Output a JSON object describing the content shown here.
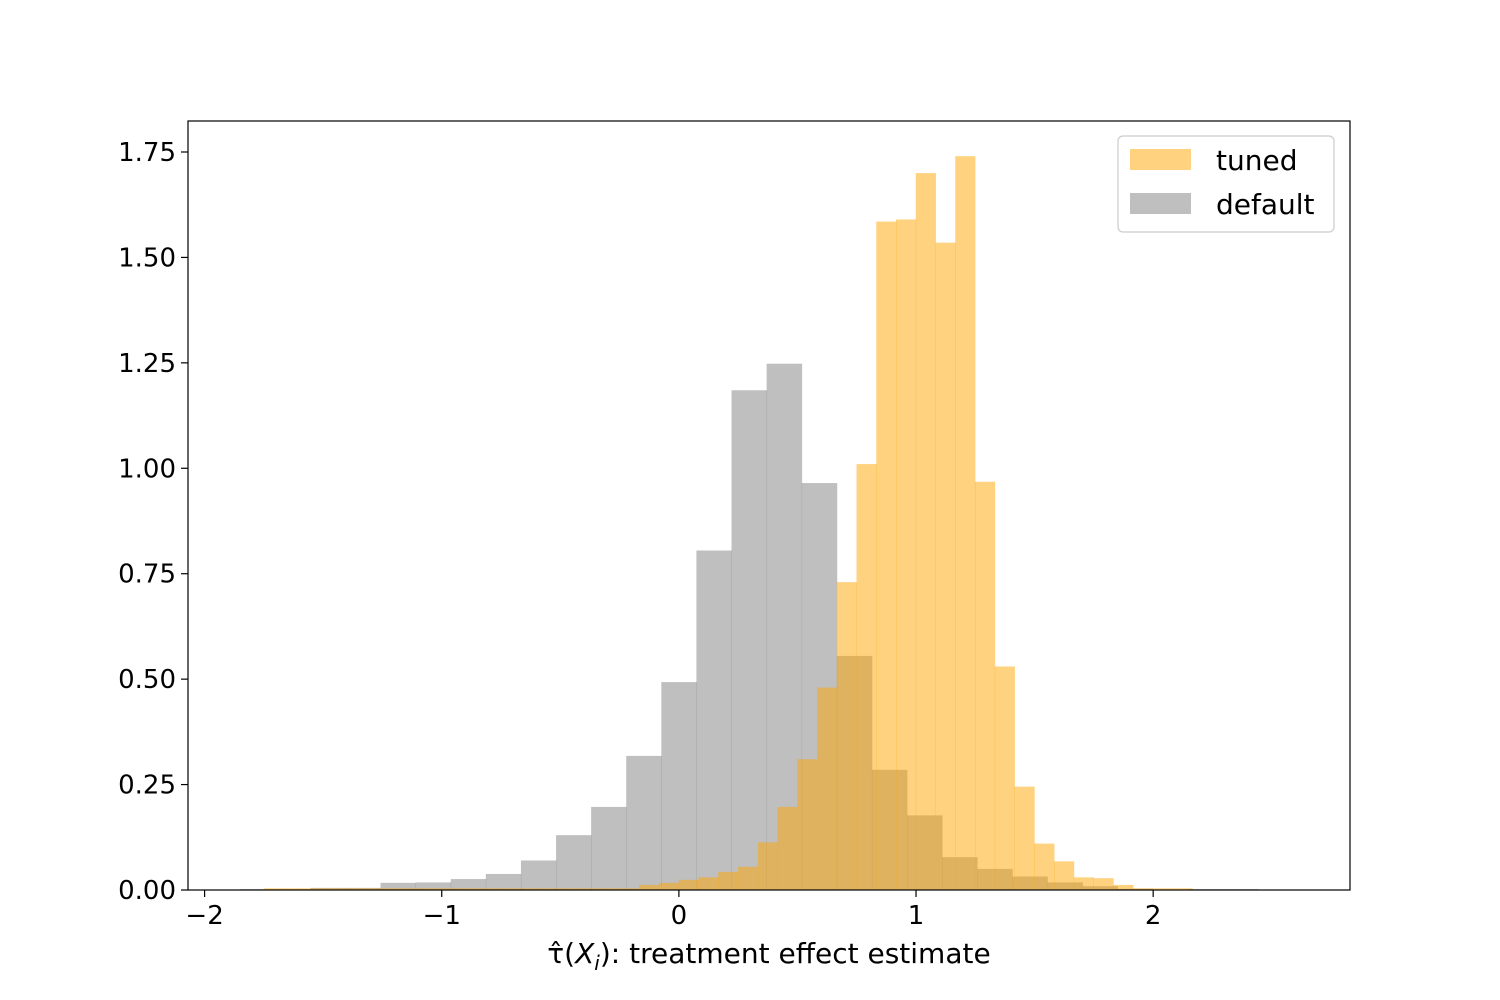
{
  "chart_data": {
    "type": "bar",
    "subtype": "overlaid-histogram",
    "xlabel_tau": "τ̂",
    "xlabel_x": "X",
    "xlabel_i": "i",
    "xlabel_rest": ": treatment effect estimate",
    "xlim": [
      -2.07,
      2.83
    ],
    "ylim": [
      0,
      1.8235
    ],
    "xticks": [
      -2,
      -1,
      0,
      1,
      2
    ],
    "xtick_labels": [
      "−2",
      "−1",
      "0",
      "1",
      "2"
    ],
    "yticks": [
      0,
      0.25,
      0.5,
      0.75,
      1.0,
      1.25,
      1.5,
      1.75
    ],
    "ytick_labels": [
      "0.00",
      "0.25",
      "0.50",
      "0.75",
      "1.00",
      "1.25",
      "1.50",
      "1.75"
    ],
    "grid": false,
    "legend_position": "top-right",
    "series": [
      {
        "name": "tuned",
        "color": "#ffa500",
        "opacity": 0.5,
        "bin_start": -1.75,
        "bin_width": 0.0833,
        "values": [
          0.004,
          0.004,
          0.004,
          0.004,
          0.004,
          0.004,
          0.004,
          0.004,
          0.004,
          0.004,
          0.004,
          0.004,
          0.004,
          0.004,
          0.004,
          0.004,
          0.004,
          0.004,
          0.004,
          0.012,
          0.017,
          0.024,
          0.03,
          0.043,
          0.055,
          0.113,
          0.197,
          0.31,
          0.48,
          0.73,
          1.01,
          1.585,
          1.59,
          1.7,
          1.535,
          1.74,
          0.968,
          0.53,
          0.245,
          0.11,
          0.068,
          0.03,
          0.028,
          0.012,
          0.004,
          0.004,
          0.004
        ]
      },
      {
        "name": "default",
        "color": "#808080",
        "opacity": 0.5,
        "bin_start": -1.85,
        "bin_width": 0.148,
        "values": [
          0.002,
          0.002,
          0.005,
          0.005,
          0.017,
          0.018,
          0.026,
          0.038,
          0.07,
          0.13,
          0.197,
          0.318,
          0.493,
          0.805,
          1.185,
          1.248,
          0.965,
          0.555,
          0.285,
          0.177,
          0.078,
          0.05,
          0.032,
          0.018,
          0.009,
          0.003,
          0.001,
          0.002,
          0.002
        ]
      }
    ]
  }
}
